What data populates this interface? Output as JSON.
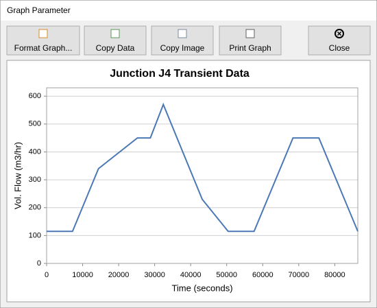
{
  "window": {
    "title": "Graph Parameter"
  },
  "toolbar": {
    "buttons": [
      "Format Graph...",
      "Copy Data",
      "Copy Image",
      "Print Graph",
      "Close"
    ]
  },
  "chart_data": {
    "type": "line",
    "title": "Junction J4 Transient Data",
    "x_label": "Time (seconds)",
    "y_label": "Vol. Flow (m3/hr)",
    "x": [
      0,
      7200,
      14400,
      25200,
      28800,
      32400,
      43200,
      50400,
      57600,
      68400,
      75600,
      86400
    ],
    "series": [
      {
        "name": "J4",
        "color": "#4a78b5",
        "values": [
          115,
          115,
          340,
          450,
          450,
          570,
          230,
          115,
          115,
          450,
          450,
          115
        ]
      }
    ],
    "xlim": [
      0,
      86400
    ],
    "xticks": [
      0,
      10000,
      20000,
      30000,
      40000,
      50000,
      60000,
      70000,
      80000
    ],
    "ylim": [
      0,
      630
    ],
    "yticks": [
      0,
      100,
      200,
      300,
      400,
      500,
      600
    ],
    "grid": "y"
  }
}
